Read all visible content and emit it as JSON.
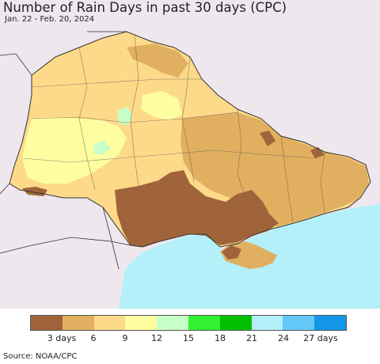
{
  "header": {
    "title": "Number of Rain Days in past 30 days (CPC)",
    "date_range": "Jan. 22 - Feb. 20, 2024"
  },
  "legend": {
    "colors": [
      "#A0643A",
      "#E0B060",
      "#FDDA8A",
      "#FEFEA0",
      "#C8FEC8",
      "#32F032",
      "#00C000",
      "#B4F0FA",
      "#64C8F8",
      "#1496E6"
    ],
    "tick_labels": [
      "3 days",
      "6",
      "9",
      "12",
      "15",
      "18",
      "21",
      "24",
      "27 days"
    ]
  },
  "footer": {
    "source": "Source: NOAA/CPC"
  },
  "map_colors": {
    "land_outside": "#EEE8EE",
    "sea": "#B4F0FA",
    "class_3": "#A0643A",
    "class_6": "#E0B060",
    "class_9": "#FDDA8A",
    "class_12": "#FEFEA0",
    "class_15": "#C8FEC8",
    "border": "#333333"
  }
}
